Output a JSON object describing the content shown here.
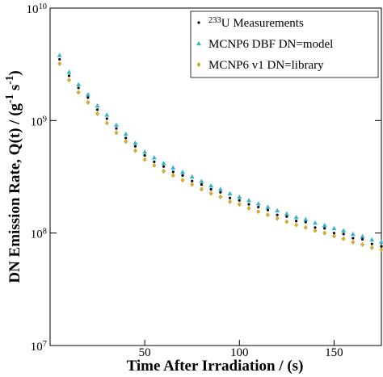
{
  "chart_data": {
    "type": "scatter",
    "x_label": "Time After Irradiation / (s)",
    "y_label": "DN Emission Rate, Q(t) / (g^{-1} s^{-1})",
    "log_y": true,
    "legend": "top-right",
    "xlim": [
      0,
      175
    ],
    "xticks": [
      50,
      100,
      150
    ],
    "ylim": [
      10000000,
      10000000000
    ],
    "yticks": [
      {
        "value": 10000000,
        "label": "10^{7}"
      },
      {
        "value": 100000000,
        "label": "10^{8}"
      },
      {
        "value": 1000000000,
        "label": "10^{9}"
      },
      {
        "value": 10000000000,
        "label": "10^{10}"
      }
    ],
    "x": [
      5,
      10,
      15,
      20,
      25,
      30,
      35,
      40,
      45,
      50,
      55,
      60,
      65,
      70,
      75,
      80,
      85,
      90,
      95,
      100,
      105,
      110,
      115,
      120,
      125,
      130,
      135,
      140,
      145,
      150,
      155,
      160,
      165,
      170,
      175
    ],
    "series": [
      {
        "name": "^{233}U Measurements",
        "color": "#000000",
        "marker": "circle",
        "values": [
          3500000000,
          2500000000,
          1950000000,
          1600000000,
          1250000000,
          1040000000,
          850000000,
          700000000,
          590000000,
          490000000,
          430000000,
          390000000,
          350000000,
          325000000,
          290000000,
          270000000,
          245000000,
          230000000,
          205000000,
          195000000,
          180000000,
          170000000,
          160000000,
          145000000,
          140000000,
          128000000,
          125000000,
          112000000,
          110000000,
          100000000,
          98000000,
          90000000,
          88000000,
          80000000,
          76000000
        ]
      },
      {
        "name": "MCNP6 DBF DN=model",
        "color": "#35b6c8",
        "marker": "triangle",
        "values": [
          3800000000,
          2690000000,
          2090000000,
          1700000000,
          1350000000,
          1120000000,
          912000000,
          759000000,
          631000000,
          525000000,
          468000000,
          417000000,
          380000000,
          347000000,
          316000000,
          288000000,
          263000000,
          245000000,
          224000000,
          209000000,
          195000000,
          182000000,
          170000000,
          158000000,
          148000000,
          138000000,
          132000000,
          123000000,
          117000000,
          110000000,
          105000000,
          97700000,
          93300000,
          87100000,
          83200000
        ]
      },
      {
        "name": "MCNP6 v1 DN=library",
        "color": "#e3b21e",
        "marker": "diamond",
        "values": [
          3200000000,
          2290000000,
          1780000000,
          1450000000,
          1150000000,
          950000000,
          780000000,
          650000000,
          540000000,
          450000000,
          400000000,
          355000000,
          325000000,
          295000000,
          270000000,
          245000000,
          225000000,
          210000000,
          190000000,
          180000000,
          166000000,
          155000000,
          145000000,
          135000000,
          126000000,
          118000000,
          112000000,
          105000000,
          100000000,
          94000000,
          89000000,
          83000000,
          79000000,
          74000000,
          71000000
        ]
      }
    ]
  }
}
